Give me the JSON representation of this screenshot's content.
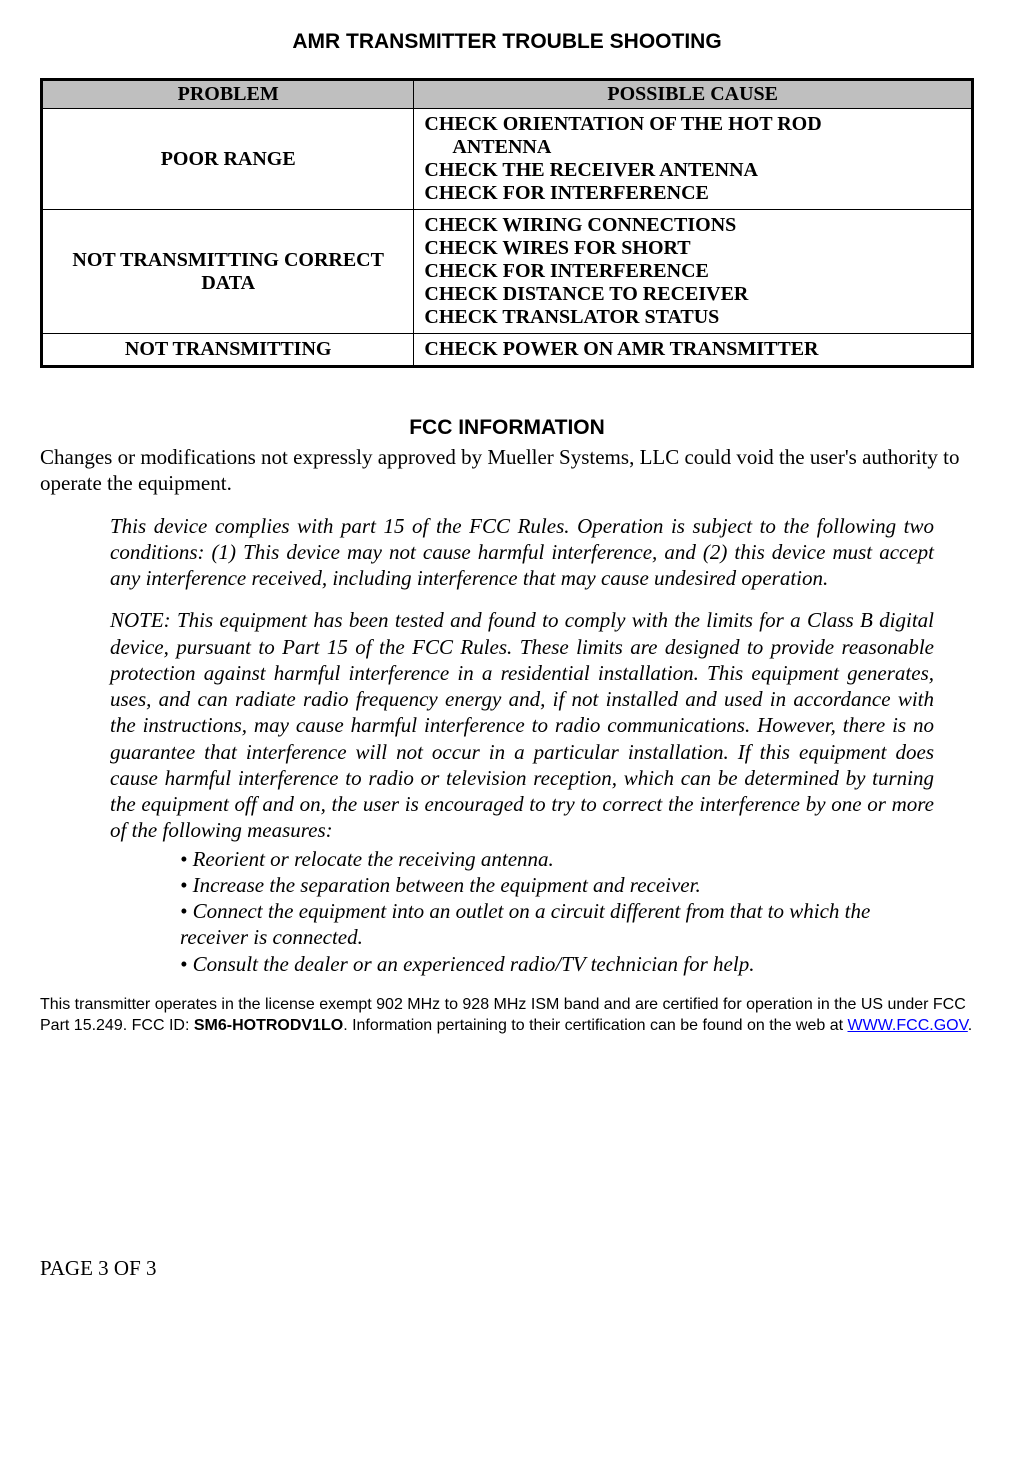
{
  "title": "AMR TRANSMITTER TROUBLE SHOOTING",
  "table": {
    "headers": {
      "problem": "PROBLEM",
      "cause": "POSSIBLE CAUSE"
    },
    "rows": [
      {
        "problem": "POOR RANGE",
        "cause_lines": [
          {
            "text": "CHECK ORIENTATION OF THE HOT ROD",
            "indent": false
          },
          {
            "text": "ANTENNA",
            "indent": true
          },
          {
            "text": "CHECK THE RECEIVER ANTENNA",
            "indent": false
          },
          {
            "text": "CHECK FOR INTERFERENCE",
            "indent": false
          }
        ]
      },
      {
        "problem": "NOT TRANSMITTING CORRECT DATA",
        "cause_lines": [
          {
            "text": "CHECK WIRING CONNECTIONS",
            "indent": false
          },
          {
            "text": "CHECK WIRES FOR SHORT",
            "indent": false
          },
          {
            "text": "CHECK FOR INTERFERENCE",
            "indent": false
          },
          {
            "text": "CHECK DISTANCE TO RECEIVER",
            "indent": false
          },
          {
            "text": "CHECK TRANSLATOR STATUS",
            "indent": false
          }
        ]
      },
      {
        "problem": "NOT TRANSMITTING",
        "cause_lines": [
          {
            "text": "CHECK POWER ON AMR TRANSMITTER",
            "indent": false
          }
        ]
      }
    ]
  },
  "fcc": {
    "heading": "FCC INFORMATION",
    "intro": "Changes or modifications not expressly approved by Mueller Systems, LLC could void the user's authority to operate the equipment.",
    "compliance": "This device complies with part 15 of the FCC Rules. Operation is subject to the following two conditions: (1) This device may not cause harmful interference, and (2) this device must accept any interference received, including interference that may cause undesired operation.",
    "note": "NOTE: This equipment has been tested and found to comply with the limits for a Class B digital device, pursuant to Part 15 of the FCC Rules. These limits are designed to provide reasonable protection against harmful interference in a residential installation. This equipment generates, uses, and can radiate radio frequency energy and, if not installed and used in accordance with the instructions, may cause harmful interference to radio communications. However, there is no guarantee that interference will not occur in a particular installation. If this equipment does cause harmful interference to radio or television reception, which can be determined by turning the equipment off and on, the user is encouraged to try to correct the interference by one or more of the following measures:",
    "bullets": [
      "• Reorient or relocate the receiving antenna.",
      "• Increase the separation between the equipment and receiver.",
      "• Connect the equipment into an outlet on a circuit different from that to which the receiver is connected.",
      "• Consult the dealer or an experienced radio/TV technician for help."
    ],
    "cert_pre": "This transmitter operates in the license exempt 902 MHz to 928 MHz ISM band and are certified for operation in the US under FCC Part 15.249.  FCC ID: ",
    "cert_id": "SM6-HOTRODV1LO",
    "cert_mid": ".  Information pertaining to their certification can be found on the web at ",
    "cert_link": "WWW.FCC.GOV",
    "cert_post": "."
  },
  "footer": "PAGE 3 OF 3"
}
